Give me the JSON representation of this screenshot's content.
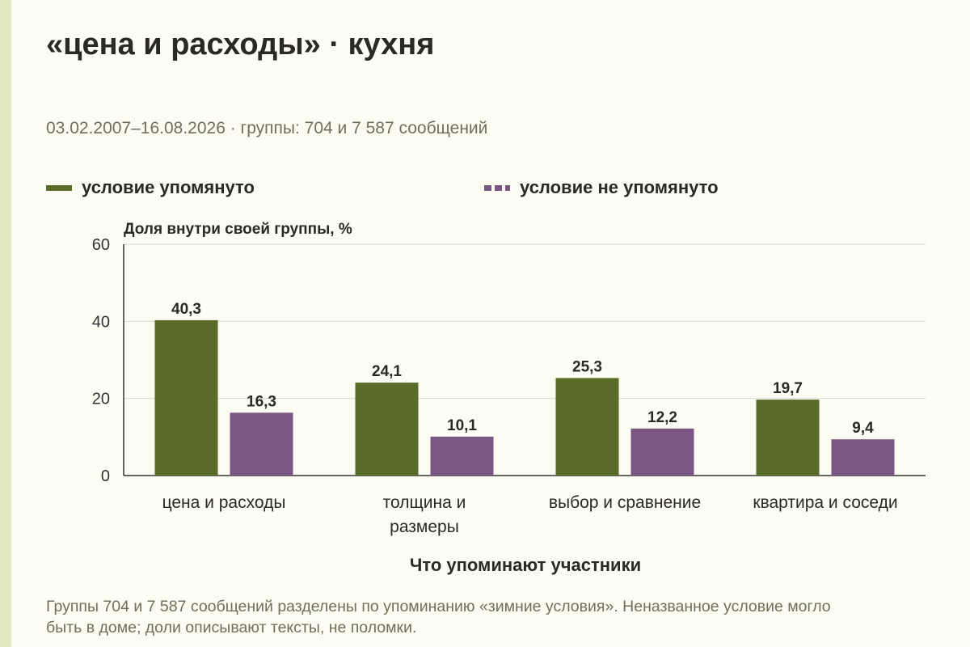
{
  "title": "«цена и расходы» · кухня",
  "subtitle": "03.02.2007–16.08.2026 · группы: 704 и 7 587 сообщений",
  "footnote": "Группы 704 и 7 587 сообщений разделены по упоминанию «зимние условия». Неназванное условие могло быть в доме; доли описывают тексты, не поломки.",
  "colors": {
    "series_a": "#5a6b2a",
    "series_b": "#7a5683",
    "background": "#fdfcf3",
    "accent_strip": "#e3e8c3"
  },
  "chart_data": {
    "type": "bar",
    "title": "",
    "ylabel": "Доля внутри своей группы, %",
    "xlabel": "Что упоминают участники",
    "ylim": [
      0,
      60
    ],
    "yticks": [
      0,
      20,
      40,
      60
    ],
    "grid": true,
    "legend_position": "top",
    "categories": [
      [
        "цена и расходы"
      ],
      [
        "толщина и",
        "размеры"
      ],
      [
        "выбор и сравнение"
      ],
      [
        "квартира и соседи"
      ]
    ],
    "series": [
      {
        "name": "условие упомянуто",
        "values": [
          40.3,
          24.1,
          25.3,
          19.7
        ],
        "labels": [
          "40,3",
          "24,1",
          "25,3",
          "19,7"
        ]
      },
      {
        "name": "условие не упомянуто",
        "values": [
          16.3,
          10.1,
          12.2,
          9.4
        ],
        "labels": [
          "16,3",
          "10,1",
          "12,2",
          "9,4"
        ]
      }
    ]
  }
}
